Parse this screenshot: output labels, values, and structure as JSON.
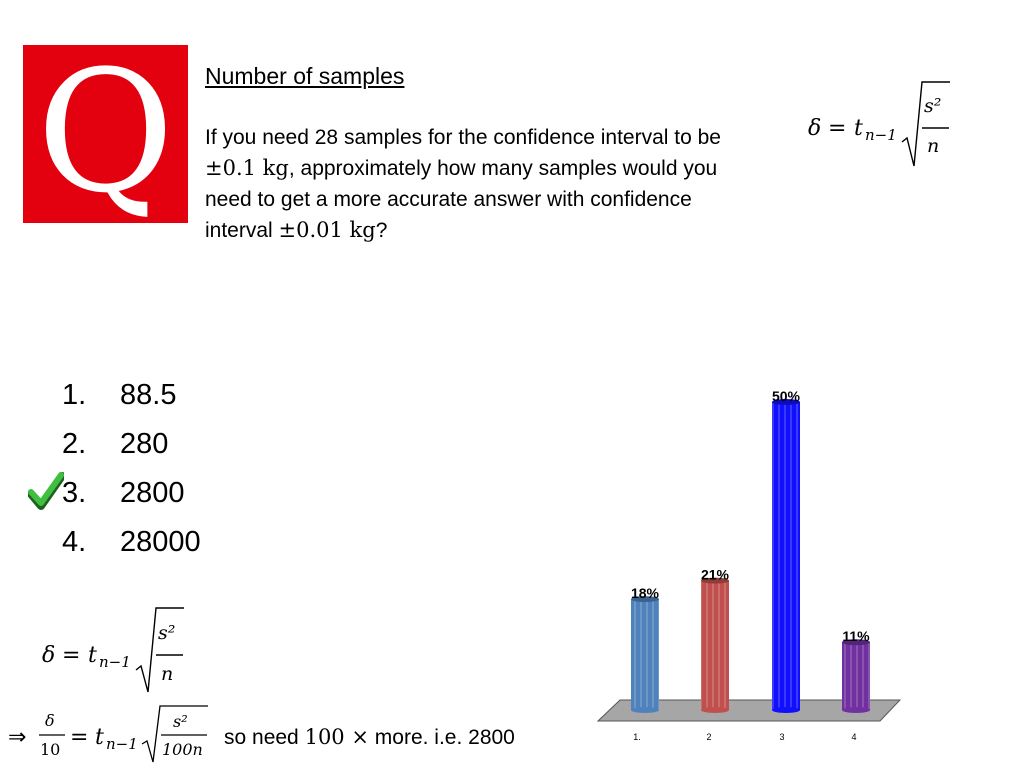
{
  "logo": {
    "letter": "Q",
    "color": "#e3000f"
  },
  "slide": {
    "title": "Number of samples",
    "question": {
      "part1": "If you need 28 samples for the confidence interval to be ",
      "interval1": "±0.1 kg",
      "part2": ", approximately how many samples would you need to get a more accurate answer with confidence interval ",
      "interval2": "±0.01 kg",
      "part3": "?"
    }
  },
  "formula": {
    "lhs": "δ",
    "eq": "=",
    "t": "t",
    "sub": "n−1",
    "num": "s²",
    "den": "n"
  },
  "derivation": {
    "implies": "⇒",
    "lhs_num": "δ",
    "lhs_den": "10",
    "eq": "=",
    "t": "t",
    "sub": "n−1",
    "num": "s²",
    "den": "100n",
    "conclusion_a": "so need ",
    "factor": "100 ×",
    "conclusion_b": " more. i.e. 2800"
  },
  "choices": [
    {
      "number": "1.",
      "value": "88.5",
      "correct": false
    },
    {
      "number": "2.",
      "value": "280",
      "correct": false
    },
    {
      "number": "3.",
      "value": "2800",
      "correct": true
    },
    {
      "number": "4.",
      "value": "28000",
      "correct": false
    }
  ],
  "chart_data": {
    "type": "bar",
    "categories": [
      "1.",
      "2",
      "3",
      "4"
    ],
    "values": [
      18,
      21,
      50,
      11
    ],
    "value_labels": [
      "18%",
      "21%",
      "50%",
      "11%"
    ],
    "colors": [
      "#4f81bd",
      "#c0504d",
      "#1010ff",
      "#7030a0"
    ],
    "ylim": [
      0,
      50
    ],
    "title": "",
    "xlabel": "",
    "ylabel": ""
  }
}
